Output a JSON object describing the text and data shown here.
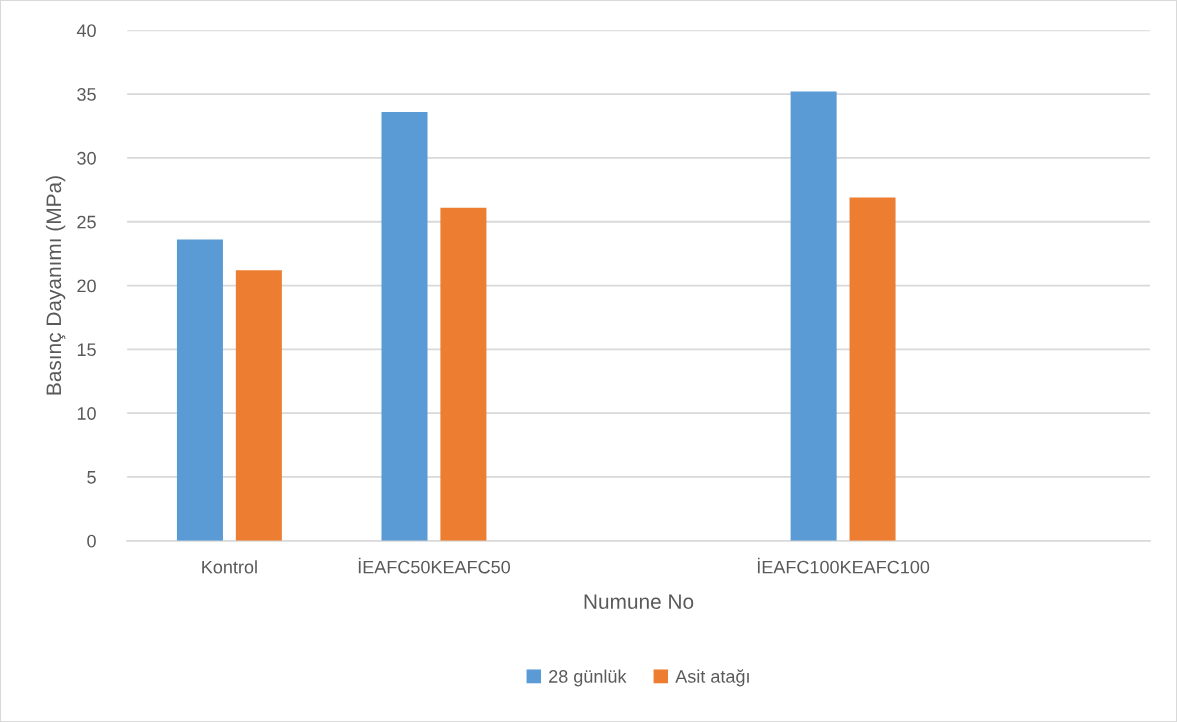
{
  "chart_data": {
    "type": "bar",
    "xlabel": "Numune No",
    "ylabel": "Basınç Dayanımı (MPa)",
    "categories": [
      "Kontrol",
      "İEAFC50KEAFC50",
      null,
      "İEAFC100KEAFC100",
      null
    ],
    "series": [
      {
        "name": "28 günlük",
        "color": "#5b9bd5",
        "values": [
          23.6,
          33.6,
          null,
          35.2,
          null
        ]
      },
      {
        "name": "Asit atağı",
        "color": "#ed7d31",
        "values": [
          21.2,
          26.1,
          null,
          26.9,
          null
        ]
      }
    ],
    "ylim": [
      0,
      40
    ],
    "yticks": [
      0,
      5,
      10,
      15,
      20,
      25,
      30,
      35,
      40
    ],
    "grid": "y",
    "legend": "bottom"
  }
}
